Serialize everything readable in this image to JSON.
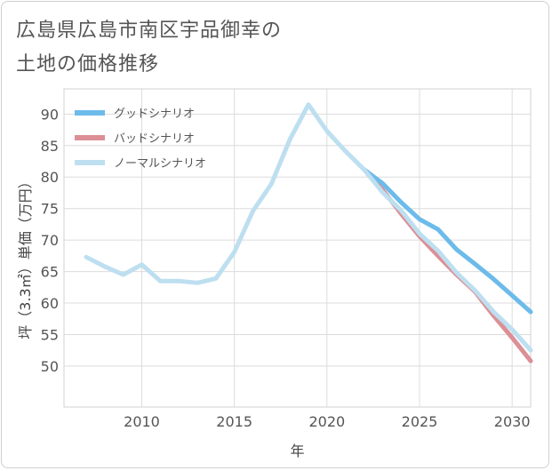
{
  "title_line1": "広島県広島市南区宇品御幸の",
  "title_line2": "土地の価格推移",
  "chart_data": {
    "type": "line",
    "title": "広島県広島市南区宇品御幸の土地の価格推移",
    "xlabel": "年",
    "ylabel": "坪（3.3㎡）単価（万円）",
    "xlim": [
      2005.8,
      2031
    ],
    "ylim": [
      43.5,
      94
    ],
    "xticks": [
      2010,
      2015,
      2020,
      2025,
      2030
    ],
    "yticks": [
      50,
      55,
      60,
      65,
      70,
      75,
      80,
      85,
      90
    ],
    "legend_position": "top-left",
    "series": [
      {
        "name": "グッドシナリオ",
        "color": "#6cbbea",
        "x": [
          2022,
          2023,
          2024,
          2025,
          2026,
          2027,
          2028,
          2029,
          2030,
          2031
        ],
        "values": [
          81.2,
          79.0,
          76.0,
          73.3,
          71.7,
          68.5,
          66.2,
          63.8,
          61.2,
          58.6
        ]
      },
      {
        "name": "バッドシナリオ",
        "color": "#dc8f96",
        "x": [
          2022,
          2023,
          2024,
          2025,
          2026,
          2027,
          2028,
          2029,
          2030,
          2031
        ],
        "values": [
          81.2,
          78.0,
          74.2,
          70.6,
          67.5,
          64.5,
          61.8,
          58.0,
          54.5,
          50.8
        ]
      },
      {
        "name": "ノーマルシナリオ",
        "color": "#bddff0",
        "x": [
          2007,
          2008,
          2009,
          2010,
          2011,
          2012,
          2013,
          2014,
          2015,
          2016,
          2017,
          2018,
          2019,
          2020,
          2021,
          2022,
          2023,
          2024,
          2025,
          2026,
          2027,
          2028,
          2029,
          2030,
          2031
        ],
        "values": [
          67.3,
          65.8,
          64.5,
          66.1,
          63.5,
          63.5,
          63.2,
          63.9,
          68.1,
          74.6,
          78.9,
          86.0,
          91.5,
          87.3,
          84.1,
          81.2,
          77.6,
          74.7,
          71.0,
          68.3,
          64.8,
          62.0,
          58.6,
          55.8,
          52.5
        ]
      }
    ]
  }
}
